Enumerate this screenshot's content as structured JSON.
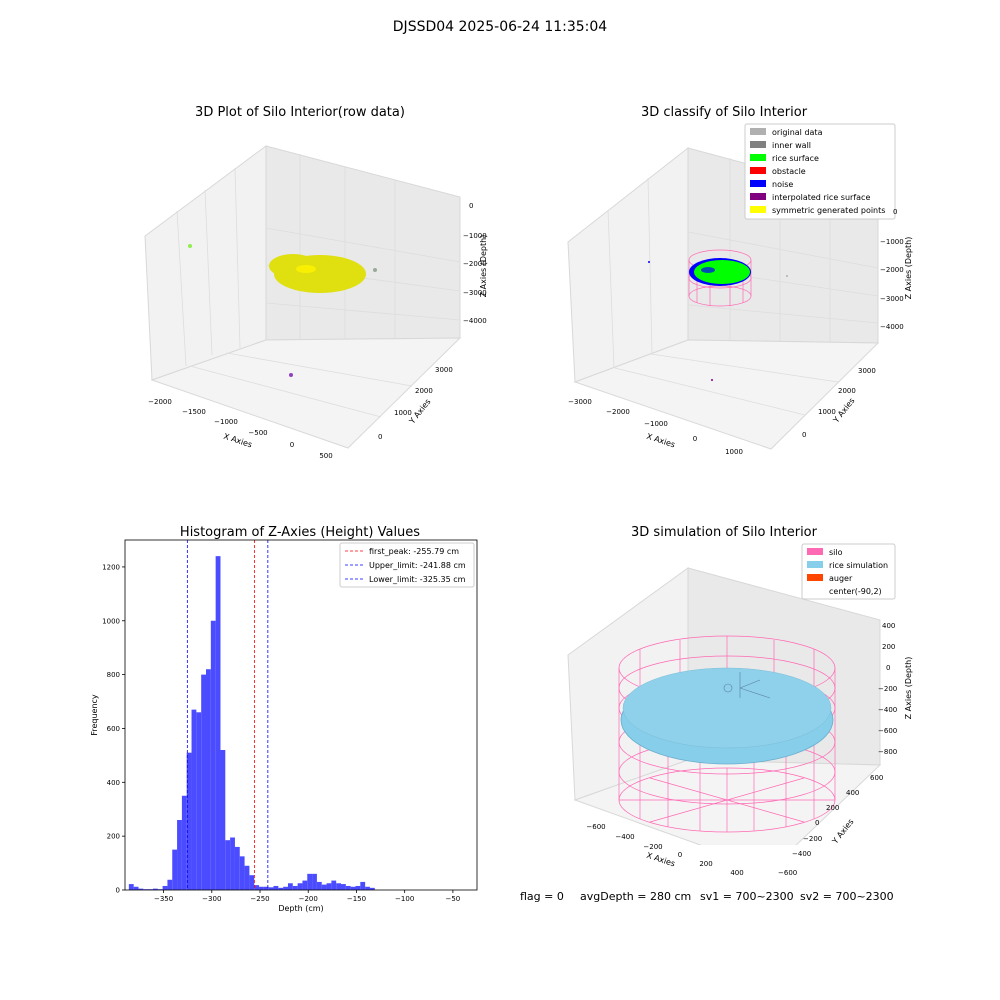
{
  "figure": {
    "suptitle": "DJSSD04 2025-06-24 11:35:04",
    "footer": {
      "flag": "flag = 0",
      "avg_depth": "avgDepth = 280 cm",
      "sv1": "sv1 = 700~2300",
      "sv2": "sv2 = 700~2300"
    }
  },
  "colors": {
    "raw_points": "#e0e010",
    "rice_surface": "#00ff00",
    "noise": "#0000ff",
    "original": "#b0b0b0",
    "inner_wall": "#808080",
    "obstacle": "#ff0000",
    "interpolated": "#800080",
    "symmetric": "#ffff00",
    "silo": "#ff69b4",
    "rice_sim": "#87ceeb",
    "auger": "#ff4500",
    "hist_bar": "#4b4bff",
    "peak_line": "#ff0000",
    "limit_line": "#0000ff"
  },
  "chart_data": [
    {
      "type": "scatter",
      "title": "3D Plot of Silo Interior(row data)",
      "xlabel": "X Axies",
      "ylabel": "Y Axies",
      "zlabel": "Z Axies (Depth)",
      "x_ticks": [
        "−2000",
        "−1500",
        "−1000",
        "−500",
        "0",
        "500"
      ],
      "y_ticks": [
        "0",
        "1000",
        "2000",
        "3000"
      ],
      "z_ticks": [
        "0",
        "−1000",
        "−2000",
        "−3000",
        "−4000"
      ]
    },
    {
      "type": "scatter",
      "title": "3D classify of Silo Interior",
      "xlabel": "X Axies",
      "ylabel": "Y Axies",
      "zlabel": "Z Axies (Depth)",
      "x_ticks": [
        "−3000",
        "−2000",
        "−1000",
        "0",
        "1000"
      ],
      "y_ticks": [
        "0",
        "1000",
        "2000",
        "3000"
      ],
      "z_ticks": [
        "0",
        "−1000",
        "−2000",
        "−3000",
        "−4000"
      ],
      "legend": [
        {
          "label": "original data",
          "color": "#b0b0b0"
        },
        {
          "label": "inner wall",
          "color": "#808080"
        },
        {
          "label": "rice surface",
          "color": "#00ff00"
        },
        {
          "label": "obstacle",
          "color": "#ff0000"
        },
        {
          "label": "noise",
          "color": "#0000ff"
        },
        {
          "label": "interpolated rice surface",
          "color": "#800080"
        },
        {
          "label": "symmetric generated points",
          "color": "#ffff00"
        }
      ],
      "legend_position": "top-right"
    },
    {
      "type": "bar",
      "title": "Histogram of Z-Axies (Height) Values",
      "xlabel": "Depth (cm)",
      "ylabel": "Frequency",
      "xlim": [
        -390,
        -25
      ],
      "ylim": [
        0,
        1300
      ],
      "x_ticks": [
        -350,
        -300,
        -250,
        -200,
        -150,
        -100,
        -50
      ],
      "y_ticks": [
        0,
        200,
        400,
        600,
        800,
        1000,
        1200
      ],
      "bin_start": -386,
      "bin_width": 5,
      "values": [
        22,
        12,
        5,
        3,
        3,
        5,
        3,
        15,
        38,
        150,
        260,
        350,
        510,
        670,
        660,
        800,
        820,
        1000,
        1240,
        520,
        185,
        195,
        160,
        125,
        90,
        55,
        18,
        12,
        12,
        10,
        15,
        8,
        12,
        25,
        15,
        25,
        35,
        60,
        60,
        30,
        20,
        25,
        35,
        25,
        22,
        15,
        12,
        15,
        30,
        12,
        8
      ],
      "lines": [
        {
          "label": "first_peak: -255.79 cm",
          "x": -255.79,
          "color": "#ff0000"
        },
        {
          "label": "Upper_limit: -241.88 cm",
          "x": -241.88,
          "color": "#0000ff"
        },
        {
          "label": "Lower_limit: -325.35 cm",
          "x": -325.35,
          "color": "#0000ff"
        }
      ],
      "legend_position": "top-right"
    },
    {
      "type": "scatter",
      "title": "3D simulation of Silo Interior",
      "xlabel": "X Axies",
      "ylabel": "Y Axies",
      "zlabel": "Z Axies (Depth)",
      "x_ticks": [
        "−600",
        "−400",
        "−200",
        "0",
        "200",
        "400"
      ],
      "y_ticks": [
        "−600",
        "−400",
        "−200",
        "0",
        "200",
        "400",
        "600"
      ],
      "z_ticks": [
        "400",
        "200",
        "0",
        "−200",
        "−400",
        "−600",
        "−800"
      ],
      "legend": [
        {
          "label": "silo",
          "color": "#ff69b4"
        },
        {
          "label": "rice simulation",
          "color": "#87ceeb"
        },
        {
          "label": "auger",
          "color": "#ff4500"
        },
        {
          "label": "center(-90,2)",
          "color": ""
        }
      ],
      "legend_position": "top-right"
    }
  ]
}
